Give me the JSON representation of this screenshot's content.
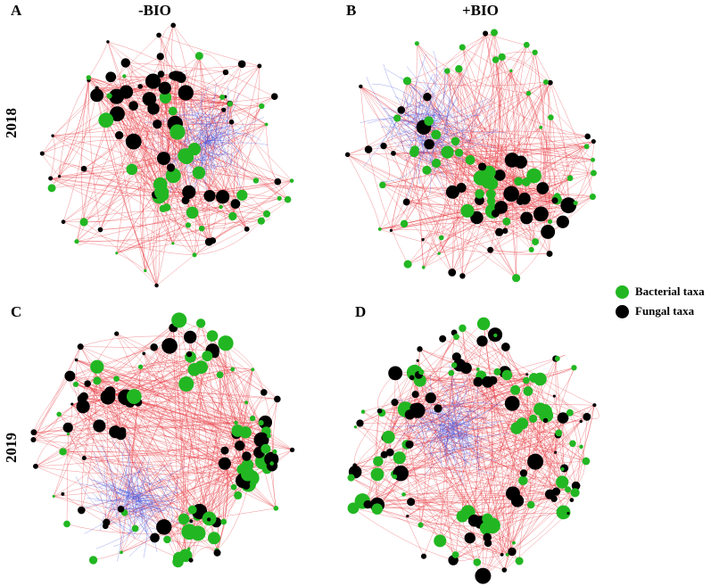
{
  "panels": [
    {
      "letter": "A"
    },
    {
      "letter": "B"
    },
    {
      "letter": "C"
    },
    {
      "letter": "D"
    }
  ],
  "column_titles": [
    "-BIO",
    "+BIO"
  ],
  "row_labels": [
    "2018",
    "2019"
  ],
  "legend": [
    {
      "label": "Bacterial taxa",
      "color": "#22b722"
    },
    {
      "label": "Fungal taxa",
      "color": "#000000"
    }
  ],
  "colors": {
    "positive_edge": "#e8393f",
    "negative_edge": "#3b4fe0",
    "bacterial_node": "#22b722",
    "fungal_node": "#000000"
  }
}
